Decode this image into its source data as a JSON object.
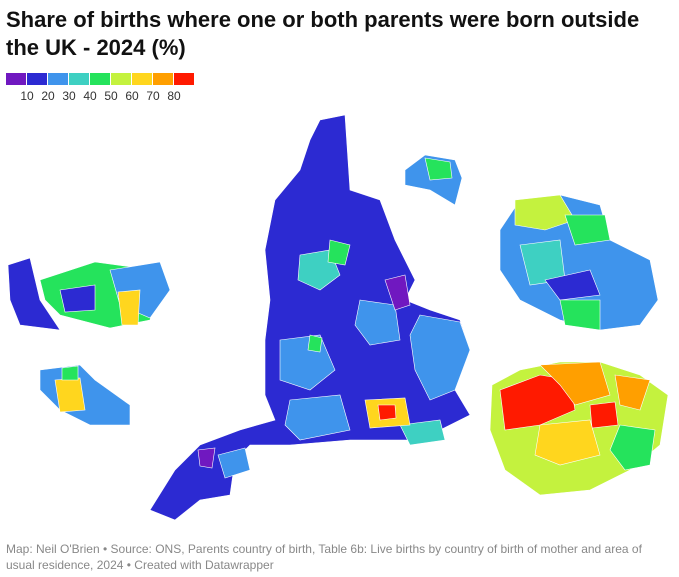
{
  "title": "Share of births where one or both parents were born outside the UK - 2024 (%)",
  "legend": {
    "colors": [
      "#7018c0",
      "#2c2ad2",
      "#3f94ec",
      "#3ed0c2",
      "#25e35c",
      "#c4f23e",
      "#ffd61e",
      "#ff9f00",
      "#ff1a00"
    ],
    "ticks": [
      10,
      20,
      30,
      40,
      50,
      60,
      70,
      80
    ]
  },
  "source": "Map: Neil O'Brien • Source: ONS, Parents country of birth, Table 6b: Live births by country of birth of mother and area of usual residence, 2024 • Created with Datawrapper"
}
